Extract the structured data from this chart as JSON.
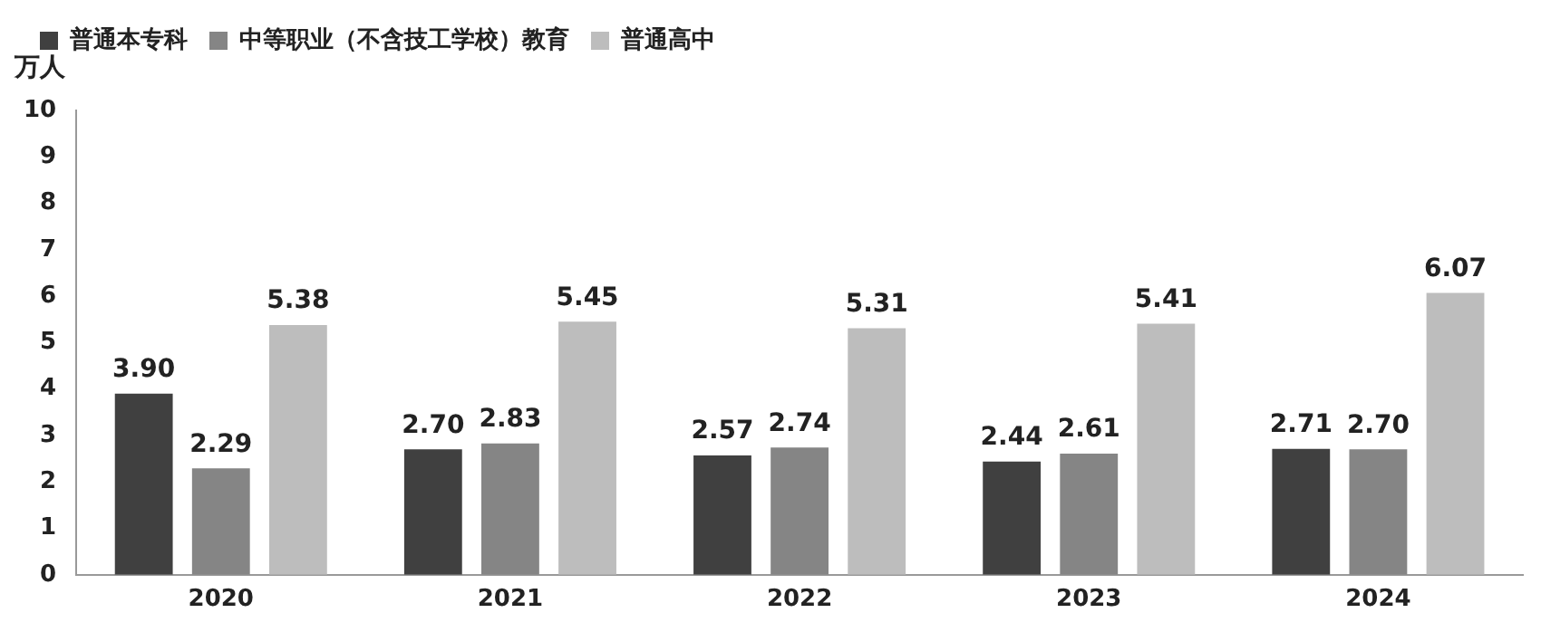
{
  "chart_data": {
    "type": "bar",
    "ylabel": "万人",
    "categories": [
      "2020",
      "2021",
      "2022",
      "2023",
      "2024"
    ],
    "series": [
      {
        "name": "普通本专科",
        "color": "#404040",
        "values": [
          3.9,
          2.7,
          2.57,
          2.44,
          2.71
        ],
        "value_labels": [
          "3.90",
          "2.70",
          "2.57",
          "2.44",
          "2.71"
        ]
      },
      {
        "name": "中等职业（不含技工学校）教育",
        "color": "#858585",
        "values": [
          2.29,
          2.83,
          2.74,
          2.61,
          2.7
        ],
        "value_labels": [
          "2.29",
          "2.83",
          "2.74",
          "2.61",
          "2.70"
        ]
      },
      {
        "name": "普通高中",
        "color": "#bdbdbd",
        "values": [
          5.38,
          5.45,
          5.31,
          5.41,
          6.07
        ],
        "value_labels": [
          "5.38",
          "5.45",
          "5.31",
          "5.41",
          "6.07"
        ]
      }
    ],
    "ylim": [
      0,
      10
    ],
    "yticks": [
      0,
      1,
      2,
      3,
      4,
      5,
      6,
      7,
      8,
      9,
      10
    ],
    "grid": false,
    "legend": "top"
  }
}
